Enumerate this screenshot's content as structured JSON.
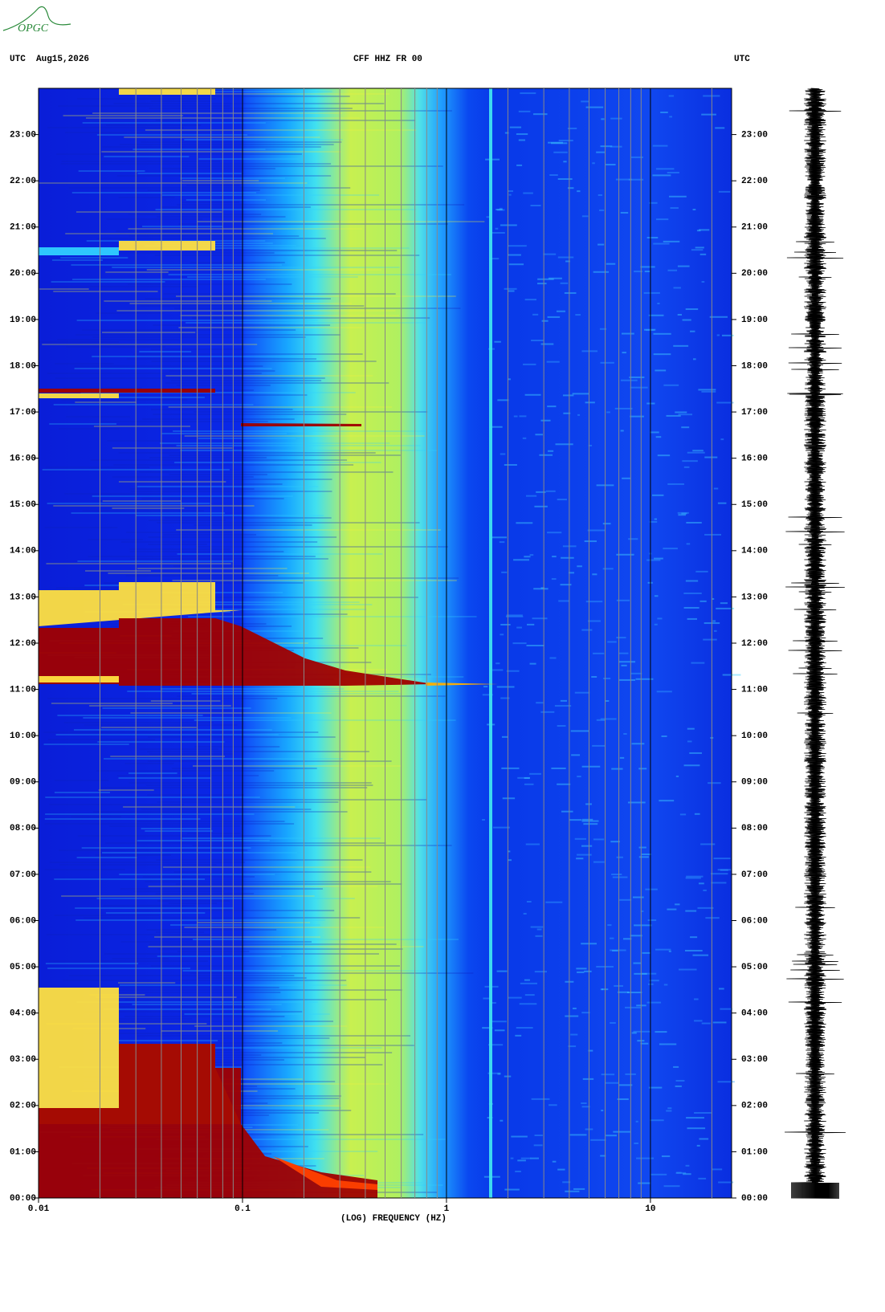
{
  "logo": "OPGC",
  "chart_data": {
    "type": "spectrogram",
    "title": "CFF HHZ FR 00",
    "date_label": "UTC  Aug15,2026",
    "right_label": "UTC",
    "xlabel": "(LOG) FREQUENCY (HZ)",
    "xscale": "log",
    "xlim": [
      0.01,
      25
    ],
    "xticks": [
      0.01,
      0.1,
      1,
      10
    ],
    "xgrid": [
      0.02,
      0.03,
      0.04,
      0.05,
      0.06,
      0.07,
      0.08,
      0.09,
      0.2,
      0.3,
      0.4,
      0.5,
      0.6,
      0.7,
      0.8,
      0.9,
      2,
      3,
      4,
      5,
      6,
      7,
      8,
      9,
      20
    ],
    "ylim": [
      0,
      24
    ],
    "yticks": [
      {
        "value": 0,
        "label": "00:00"
      },
      {
        "value": 1,
        "label": "01:00"
      },
      {
        "value": 2,
        "label": "02:00"
      },
      {
        "value": 3,
        "label": "03:00"
      },
      {
        "value": 4,
        "label": "04:00"
      },
      {
        "value": 5,
        "label": "05:00"
      },
      {
        "value": 6,
        "label": "06:00"
      },
      {
        "value": 7,
        "label": "07:00"
      },
      {
        "value": 8,
        "label": "08:00"
      },
      {
        "value": 9,
        "label": "09:00"
      },
      {
        "value": 10,
        "label": "10:00"
      },
      {
        "value": 11,
        "label": "11:00"
      },
      {
        "value": 12,
        "label": "12:00"
      },
      {
        "value": 13,
        "label": "13:00"
      },
      {
        "value": 14,
        "label": "14:00"
      },
      {
        "value": 15,
        "label": "15:00"
      },
      {
        "value": 16,
        "label": "16:00"
      },
      {
        "value": 17,
        "label": "17:00"
      },
      {
        "value": 18,
        "label": "18:00"
      },
      {
        "value": 19,
        "label": "19:00"
      },
      {
        "value": 20,
        "label": "20:00"
      },
      {
        "value": 21,
        "label": "21:00"
      },
      {
        "value": 22,
        "label": "22:00"
      },
      {
        "value": 23,
        "label": "23:00"
      }
    ]
  }
}
